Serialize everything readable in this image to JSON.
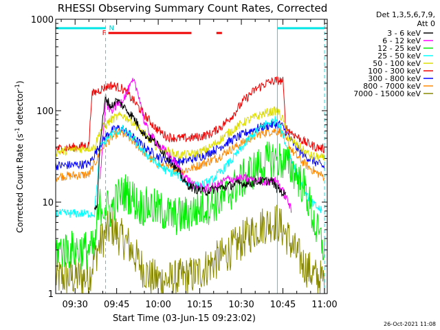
{
  "chart_data": {
    "type": "line",
    "title": "RHESSI Observing Summary Count Rates, Corrected",
    "xlabel": "Start Time (03-Jun-15 09:23:02)",
    "ylabel": "Corrected Count Rate (s⁻¹ detector⁻¹)",
    "ylabel_main": "Corrected Count Rate (s",
    "ylabel_exp1": "-1",
    "ylabel_mid": " detector",
    "ylabel_exp2": "-1",
    "ylabel_end": ")",
    "yscale": "log",
    "ylim": [
      1,
      1000
    ],
    "xlim_minutes": [
      0,
      98
    ],
    "x_ticks": [
      {
        "minute": 7,
        "label": "09:30"
      },
      {
        "minute": 22,
        "label": "09:45"
      },
      {
        "minute": 37,
        "label": "10:00"
      },
      {
        "minute": 52,
        "label": "10:15"
      },
      {
        "minute": 67,
        "label": "10:30"
      },
      {
        "minute": 82,
        "label": "10:45"
      },
      {
        "minute": 97,
        "label": "11:00"
      }
    ],
    "y_ticks": [
      {
        "value": 1,
        "label": "1"
      },
      {
        "value": 10,
        "label": "10"
      },
      {
        "value": 100,
        "label": "100"
      },
      {
        "value": 1000,
        "label": "1000"
      }
    ],
    "legend_header": [
      "Det 1,3,5,6,7,9,",
      "Att 0"
    ],
    "legend_position": "right",
    "series": [
      {
        "name": "3 - 6 keV",
        "color": "#000000",
        "points": [
          [
            14,
            8
          ],
          [
            15,
            10
          ],
          [
            16,
            45
          ],
          [
            18,
            140
          ],
          [
            20,
            110
          ],
          [
            22,
            130
          ],
          [
            24,
            115
          ],
          [
            28,
            85
          ],
          [
            32,
            55
          ],
          [
            36,
            45
          ],
          [
            40,
            32
          ],
          [
            44,
            22
          ],
          [
            47,
            16
          ],
          [
            50,
            14
          ],
          [
            54,
            13
          ],
          [
            58,
            14
          ],
          [
            62,
            15
          ],
          [
            66,
            16
          ],
          [
            70,
            16
          ],
          [
            74,
            17
          ],
          [
            78,
            17
          ],
          [
            80,
            14
          ],
          [
            83,
            12
          ]
        ]
      },
      {
        "name": "6 - 12 keV",
        "color": "#ff00ff",
        "points": [
          [
            16,
            18
          ],
          [
            18,
            120
          ],
          [
            20,
            100
          ],
          [
            24,
            130
          ],
          [
            28,
            210
          ],
          [
            30,
            150
          ],
          [
            32,
            75
          ],
          [
            34,
            55
          ],
          [
            38,
            40
          ],
          [
            42,
            30
          ],
          [
            46,
            20
          ],
          [
            50,
            15
          ],
          [
            54,
            14
          ],
          [
            58,
            15
          ],
          [
            62,
            18
          ],
          [
            66,
            18
          ],
          [
            70,
            18
          ],
          [
            74,
            17
          ],
          [
            78,
            17
          ],
          [
            80,
            17
          ],
          [
            82,
            13
          ],
          [
            84,
            10
          ],
          [
            85,
            8
          ]
        ]
      },
      {
        "name": "12 - 25 keV",
        "color": "#00ee00",
        "points": [
          [
            0,
            3
          ],
          [
            14,
            3
          ],
          [
            15,
            6
          ],
          [
            16,
            9
          ],
          [
            18,
            9
          ],
          [
            20,
            8
          ],
          [
            22,
            11
          ],
          [
            25,
            13
          ],
          [
            28,
            11
          ],
          [
            30,
            9
          ],
          [
            34,
            9
          ],
          [
            38,
            8
          ],
          [
            42,
            7
          ],
          [
            46,
            7
          ],
          [
            50,
            8
          ],
          [
            54,
            9
          ],
          [
            58,
            10
          ],
          [
            62,
            12
          ],
          [
            66,
            16
          ],
          [
            70,
            21
          ],
          [
            74,
            25
          ],
          [
            78,
            30
          ],
          [
            82,
            28
          ],
          [
            86,
            22
          ],
          [
            90,
            14
          ],
          [
            94,
            5
          ],
          [
            97,
            3
          ]
        ]
      },
      {
        "name": "25 - 50 keV",
        "color": "#00ffff",
        "points": [
          [
            0,
            7.5
          ],
          [
            14,
            7.5
          ],
          [
            16,
            40
          ],
          [
            20,
            55
          ],
          [
            24,
            62
          ],
          [
            28,
            50
          ],
          [
            32,
            35
          ],
          [
            36,
            27
          ],
          [
            40,
            22
          ],
          [
            44,
            20
          ],
          [
            48,
            16
          ],
          [
            52,
            15
          ],
          [
            56,
            17
          ],
          [
            60,
            22
          ],
          [
            64,
            30
          ],
          [
            68,
            42
          ],
          [
            72,
            58
          ],
          [
            76,
            72
          ],
          [
            80,
            80
          ],
          [
            82,
            55
          ],
          [
            84,
            35
          ],
          [
            88,
            18
          ],
          [
            92,
            10
          ],
          [
            96,
            8
          ]
        ]
      },
      {
        "name": "50 - 100 keV",
        "color": "#dddd00",
        "points": [
          [
            0,
            35
          ],
          [
            14,
            40
          ],
          [
            16,
            60
          ],
          [
            20,
            80
          ],
          [
            24,
            90
          ],
          [
            28,
            75
          ],
          [
            32,
            55
          ],
          [
            36,
            42
          ],
          [
            40,
            36
          ],
          [
            44,
            33
          ],
          [
            48,
            33
          ],
          [
            52,
            35
          ],
          [
            56,
            40
          ],
          [
            60,
            50
          ],
          [
            64,
            62
          ],
          [
            68,
            75
          ],
          [
            72,
            85
          ],
          [
            76,
            95
          ],
          [
            80,
            100
          ],
          [
            82,
            80
          ],
          [
            84,
            50
          ],
          [
            88,
            40
          ],
          [
            92,
            32
          ],
          [
            97,
            30
          ]
        ]
      },
      {
        "name": "100 - 300 keV",
        "color": "#ee0000",
        "points": [
          [
            0,
            38
          ],
          [
            7,
            40
          ],
          [
            12,
            42
          ],
          [
            13,
            150
          ],
          [
            16,
            170
          ],
          [
            20,
            190
          ],
          [
            24,
            175
          ],
          [
            28,
            130
          ],
          [
            32,
            90
          ],
          [
            36,
            65
          ],
          [
            40,
            52
          ],
          [
            44,
            50
          ],
          [
            48,
            50
          ],
          [
            52,
            52
          ],
          [
            56,
            56
          ],
          [
            60,
            68
          ],
          [
            64,
            90
          ],
          [
            68,
            130
          ],
          [
            72,
            170
          ],
          [
            76,
            200
          ],
          [
            80,
            215
          ],
          [
            82,
            210
          ],
          [
            83,
            65
          ],
          [
            86,
            55
          ],
          [
            90,
            45
          ],
          [
            94,
            40
          ],
          [
            97,
            38
          ]
        ]
      },
      {
        "name": "300 - 800 keV",
        "color": "#0000ff",
        "points": [
          [
            0,
            25
          ],
          [
            12,
            26
          ],
          [
            14,
            33
          ],
          [
            17,
            48
          ],
          [
            20,
            60
          ],
          [
            23,
            65
          ],
          [
            26,
            58
          ],
          [
            30,
            45
          ],
          [
            34,
            36
          ],
          [
            38,
            30
          ],
          [
            42,
            28
          ],
          [
            46,
            28
          ],
          [
            50,
            30
          ],
          [
            54,
            33
          ],
          [
            58,
            38
          ],
          [
            62,
            45
          ],
          [
            66,
            52
          ],
          [
            70,
            60
          ],
          [
            74,
            66
          ],
          [
            78,
            70
          ],
          [
            81,
            72
          ],
          [
            83,
            60
          ],
          [
            86,
            42
          ],
          [
            90,
            32
          ],
          [
            94,
            27
          ],
          [
            97,
            24
          ]
        ]
      },
      {
        "name": "800 - 7000 keV",
        "color": "#ff8800",
        "points": [
          [
            0,
            19
          ],
          [
            12,
            20
          ],
          [
            14,
            26
          ],
          [
            17,
            40
          ],
          [
            20,
            50
          ],
          [
            23,
            58
          ],
          [
            26,
            52
          ],
          [
            30,
            40
          ],
          [
            34,
            30
          ],
          [
            38,
            25
          ],
          [
            42,
            23
          ],
          [
            46,
            22
          ],
          [
            50,
            24
          ],
          [
            54,
            27
          ],
          [
            58,
            30
          ],
          [
            62,
            36
          ],
          [
            66,
            42
          ],
          [
            70,
            50
          ],
          [
            74,
            56
          ],
          [
            78,
            60
          ],
          [
            81,
            60
          ],
          [
            83,
            48
          ],
          [
            86,
            34
          ],
          [
            90,
            26
          ],
          [
            94,
            21
          ],
          [
            97,
            19
          ]
        ]
      },
      {
        "name": "7000 - 15000 keV",
        "color": "#888800",
        "points": [
          [
            0,
            1.5
          ],
          [
            12,
            1.5
          ],
          [
            14,
            2.5
          ],
          [
            16,
            3.5
          ],
          [
            18,
            4.5
          ],
          [
            20,
            5.5
          ],
          [
            22,
            4.5
          ],
          [
            24,
            4
          ],
          [
            26,
            3.5
          ],
          [
            28,
            2.8
          ],
          [
            30,
            2.2
          ],
          [
            32,
            1.8
          ],
          [
            34,
            1.5
          ],
          [
            38,
            1.4
          ],
          [
            42,
            1.4
          ],
          [
            46,
            1.5
          ],
          [
            50,
            1.6
          ],
          [
            54,
            1.9
          ],
          [
            58,
            2.3
          ],
          [
            62,
            2.8
          ],
          [
            66,
            3.5
          ],
          [
            70,
            4.5
          ],
          [
            74,
            5.5
          ],
          [
            78,
            6
          ],
          [
            80,
            6
          ],
          [
            82,
            5
          ],
          [
            84,
            4
          ],
          [
            86,
            3
          ],
          [
            90,
            2
          ],
          [
            94,
            1.5
          ],
          [
            97,
            1.4
          ]
        ]
      }
    ],
    "annotations": {
      "flag_labels": [
        {
          "label": "F",
          "color": "#ee0000"
        },
        {
          "label": "N",
          "color": "#00cccc"
        }
      ],
      "flare_intervals_minutes": [
        [
          19,
          49
        ],
        [
          58,
          60
        ]
      ],
      "night_intervals_minutes": [
        [
          0,
          18
        ],
        [
          80,
          97
        ]
      ],
      "night_boundaries_minutes": [
        18,
        80,
        97
      ]
    },
    "timestamp": "26-Oct-2021 11:08"
  }
}
